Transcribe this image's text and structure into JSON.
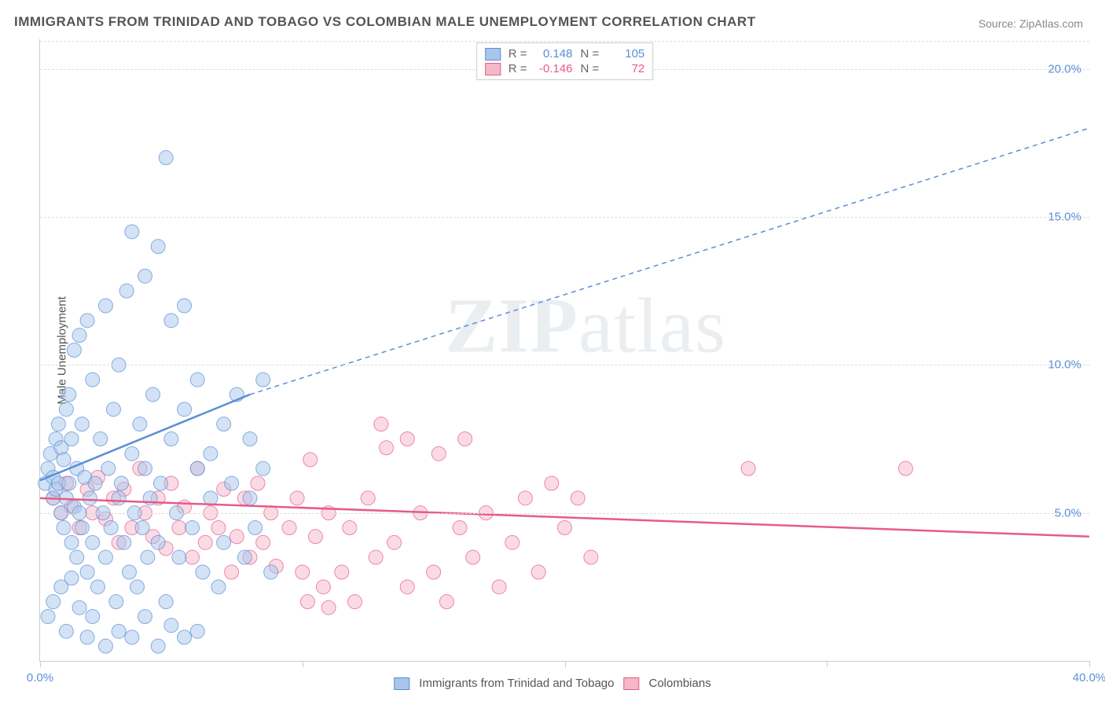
{
  "title": "IMMIGRANTS FROM TRINIDAD AND TOBAGO VS COLOMBIAN MALE UNEMPLOYMENT CORRELATION CHART",
  "source": "Source: ZipAtlas.com",
  "ylabel": "Male Unemployment",
  "watermark_bold": "ZIP",
  "watermark_rest": "atlas",
  "chart": {
    "type": "scatter",
    "xlim": [
      0,
      40
    ],
    "ylim": [
      0,
      21
    ],
    "x_ticks": [
      0,
      10,
      20,
      30,
      40
    ],
    "x_tick_labels": [
      "0.0%",
      "",
      "",
      "",
      "40.0%"
    ],
    "y_gridlines": [
      5,
      10,
      15,
      20
    ],
    "y_tick_labels": [
      "5.0%",
      "10.0%",
      "15.0%",
      "20.0%"
    ],
    "background_color": "#ffffff",
    "grid_color": "#dddddd",
    "axis_color": "#cccccc",
    "marker_radius": 9,
    "marker_opacity": 0.5,
    "series": [
      {
        "name": "Immigrants from Trinidad and Tobago",
        "color_fill": "#a8c5eb",
        "color_stroke": "#5a8fd6",
        "R": "0.148",
        "N": "105",
        "trend": {
          "solid": {
            "x1": 0,
            "y1": 6.1,
            "x2": 8,
            "y2": 9.0
          },
          "dashed": {
            "x1": 8,
            "y1": 9.0,
            "x2": 40,
            "y2": 18.0
          },
          "solid_width": 2.5,
          "dash_pattern": "6,5"
        },
        "points": [
          [
            0.2,
            6.0
          ],
          [
            0.3,
            6.5
          ],
          [
            0.4,
            7.0
          ],
          [
            0.5,
            5.5
          ],
          [
            0.5,
            6.2
          ],
          [
            0.6,
            7.5
          ],
          [
            0.6,
            5.8
          ],
          [
            0.7,
            8.0
          ],
          [
            0.7,
            6.0
          ],
          [
            0.8,
            5.0
          ],
          [
            0.8,
            7.2
          ],
          [
            0.9,
            6.8
          ],
          [
            0.9,
            4.5
          ],
          [
            1.0,
            8.5
          ],
          [
            1.0,
            5.5
          ],
          [
            1.1,
            9.0
          ],
          [
            1.1,
            6.0
          ],
          [
            1.2,
            4.0
          ],
          [
            1.2,
            7.5
          ],
          [
            1.3,
            10.5
          ],
          [
            1.3,
            5.2
          ],
          [
            1.4,
            6.5
          ],
          [
            1.4,
            3.5
          ],
          [
            1.5,
            11.0
          ],
          [
            1.5,
            5.0
          ],
          [
            1.6,
            8.0
          ],
          [
            1.6,
            4.5
          ],
          [
            1.7,
            6.2
          ],
          [
            1.8,
            11.5
          ],
          [
            1.8,
            3.0
          ],
          [
            1.9,
            5.5
          ],
          [
            2.0,
            9.5
          ],
          [
            2.0,
            4.0
          ],
          [
            2.1,
            6.0
          ],
          [
            2.2,
            2.5
          ],
          [
            2.3,
            7.5
          ],
          [
            2.4,
            5.0
          ],
          [
            2.5,
            12.0
          ],
          [
            2.5,
            3.5
          ],
          [
            2.6,
            6.5
          ],
          [
            2.7,
            4.5
          ],
          [
            2.8,
            8.5
          ],
          [
            2.9,
            2.0
          ],
          [
            3.0,
            5.5
          ],
          [
            3.0,
            10.0
          ],
          [
            3.1,
            6.0
          ],
          [
            3.2,
            4.0
          ],
          [
            3.3,
            12.5
          ],
          [
            3.4,
            3.0
          ],
          [
            3.5,
            7.0
          ],
          [
            3.5,
            14.5
          ],
          [
            3.6,
            5.0
          ],
          [
            3.7,
            2.5
          ],
          [
            3.8,
            8.0
          ],
          [
            3.9,
            4.5
          ],
          [
            4.0,
            6.5
          ],
          [
            4.0,
            13.0
          ],
          [
            4.1,
            3.5
          ],
          [
            4.2,
            5.5
          ],
          [
            4.3,
            9.0
          ],
          [
            4.5,
            14.0
          ],
          [
            4.5,
            4.0
          ],
          [
            4.6,
            6.0
          ],
          [
            4.8,
            2.0
          ],
          [
            4.8,
            17.0
          ],
          [
            5.0,
            7.5
          ],
          [
            5.0,
            11.5
          ],
          [
            5.2,
            5.0
          ],
          [
            5.3,
            3.5
          ],
          [
            5.5,
            8.5
          ],
          [
            5.5,
            12.0
          ],
          [
            5.8,
            4.5
          ],
          [
            6.0,
            6.5
          ],
          [
            6.0,
            9.5
          ],
          [
            6.2,
            3.0
          ],
          [
            6.5,
            7.0
          ],
          [
            6.5,
            5.5
          ],
          [
            6.8,
            2.5
          ],
          [
            7.0,
            8.0
          ],
          [
            7.0,
            4.0
          ],
          [
            7.3,
            6.0
          ],
          [
            7.5,
            9.0
          ],
          [
            7.8,
            3.5
          ],
          [
            8.0,
            5.5
          ],
          [
            8.0,
            7.5
          ],
          [
            8.2,
            4.5
          ],
          [
            8.5,
            9.5
          ],
          [
            8.5,
            6.5
          ],
          [
            8.8,
            3.0
          ],
          [
            0.3,
            1.5
          ],
          [
            0.5,
            2.0
          ],
          [
            0.8,
            2.5
          ],
          [
            1.0,
            1.0
          ],
          [
            1.2,
            2.8
          ],
          [
            1.5,
            1.8
          ],
          [
            1.8,
            0.8
          ],
          [
            2.0,
            1.5
          ],
          [
            2.5,
            0.5
          ],
          [
            3.0,
            1.0
          ],
          [
            3.5,
            0.8
          ],
          [
            4.0,
            1.5
          ],
          [
            4.5,
            0.5
          ],
          [
            5.0,
            1.2
          ],
          [
            5.5,
            0.8
          ],
          [
            6.0,
            1.0
          ]
        ]
      },
      {
        "name": "Colombians",
        "color_fill": "#f5b8c9",
        "color_stroke": "#e85a8a",
        "R": "-0.146",
        "N": "72",
        "trend": {
          "solid": {
            "x1": 0,
            "y1": 5.5,
            "x2": 40,
            "y2": 4.2
          },
          "solid_width": 2.5
        },
        "points": [
          [
            0.5,
            5.5
          ],
          [
            0.8,
            5.0
          ],
          [
            1.0,
            6.0
          ],
          [
            1.2,
            5.2
          ],
          [
            1.5,
            4.5
          ],
          [
            1.8,
            5.8
          ],
          [
            2.0,
            5.0
          ],
          [
            2.2,
            6.2
          ],
          [
            2.5,
            4.8
          ],
          [
            2.8,
            5.5
          ],
          [
            3.0,
            4.0
          ],
          [
            3.2,
            5.8
          ],
          [
            3.5,
            4.5
          ],
          [
            3.8,
            6.5
          ],
          [
            4.0,
            5.0
          ],
          [
            4.3,
            4.2
          ],
          [
            4.5,
            5.5
          ],
          [
            4.8,
            3.8
          ],
          [
            5.0,
            6.0
          ],
          [
            5.3,
            4.5
          ],
          [
            5.5,
            5.2
          ],
          [
            5.8,
            3.5
          ],
          [
            6.0,
            6.5
          ],
          [
            6.3,
            4.0
          ],
          [
            6.5,
            5.0
          ],
          [
            6.8,
            4.5
          ],
          [
            7.0,
            5.8
          ],
          [
            7.3,
            3.0
          ],
          [
            7.5,
            4.2
          ],
          [
            7.8,
            5.5
          ],
          [
            8.0,
            3.5
          ],
          [
            8.3,
            6.0
          ],
          [
            8.5,
            4.0
          ],
          [
            8.8,
            5.0
          ],
          [
            9.0,
            3.2
          ],
          [
            9.5,
            4.5
          ],
          [
            9.8,
            5.5
          ],
          [
            10.0,
            3.0
          ],
          [
            10.3,
            6.8
          ],
          [
            10.5,
            4.2
          ],
          [
            10.8,
            2.5
          ],
          [
            11.0,
            5.0
          ],
          [
            11.5,
            3.0
          ],
          [
            11.8,
            4.5
          ],
          [
            12.0,
            2.0
          ],
          [
            12.5,
            5.5
          ],
          [
            12.8,
            3.5
          ],
          [
            13.0,
            8.0
          ],
          [
            13.2,
            7.2
          ],
          [
            13.5,
            4.0
          ],
          [
            14.0,
            7.5
          ],
          [
            14.0,
            2.5
          ],
          [
            14.5,
            5.0
          ],
          [
            15.0,
            3.0
          ],
          [
            15.2,
            7.0
          ],
          [
            15.5,
            2.0
          ],
          [
            16.0,
            4.5
          ],
          [
            16.2,
            7.5
          ],
          [
            16.5,
            3.5
          ],
          [
            17.0,
            5.0
          ],
          [
            17.5,
            2.5
          ],
          [
            18.0,
            4.0
          ],
          [
            18.5,
            5.5
          ],
          [
            19.0,
            3.0
          ],
          [
            19.5,
            6.0
          ],
          [
            20.0,
            4.5
          ],
          [
            20.5,
            5.5
          ],
          [
            21.0,
            3.5
          ],
          [
            27.0,
            6.5
          ],
          [
            33.0,
            6.5
          ],
          [
            10.2,
            2.0
          ],
          [
            11.0,
            1.8
          ]
        ]
      }
    ]
  },
  "legend_top": {
    "r_label": "R =",
    "n_label": "N ="
  },
  "legend_bottom": {
    "items": [
      "Immigrants from Trinidad and Tobago",
      "Colombians"
    ]
  }
}
